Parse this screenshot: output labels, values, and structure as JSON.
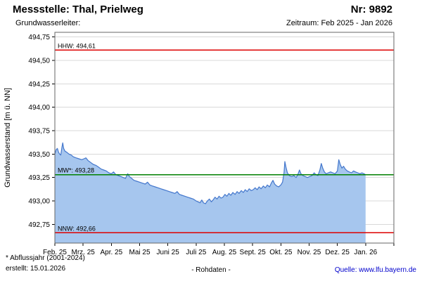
{
  "header": {
    "title": "Messstelle: Thal, Prielweg",
    "number": "Nr: 9892",
    "aquifer_label": "Grundwasserleiter:",
    "period": "Zeitraum: Feb 2025 - Jan 2026"
  },
  "footer": {
    "footnote": "* Abflussjahr (2001-2024)",
    "created": "erstellt: 15.01.2026",
    "center": "- Rohdaten -",
    "source_prefix": "Quelle: ",
    "source_link": "www.lfu.bayern.de"
  },
  "chart_data": {
    "type": "area",
    "title": "Messstelle: Thal, Prielweg",
    "ylabel": "Grundwasserstand [m ü. NN]",
    "ylim": [
      492.55,
      494.8
    ],
    "x_months": 12,
    "grid": "horizontal",
    "y_ticks": [
      {
        "value": 494.75,
        "label": "494,75"
      },
      {
        "value": 494.5,
        "label": "494,50"
      },
      {
        "value": 494.25,
        "label": "494,25"
      },
      {
        "value": 494.0,
        "label": "494,00"
      },
      {
        "value": 493.75,
        "label": "493,75"
      },
      {
        "value": 493.5,
        "label": "493,50"
      },
      {
        "value": 493.25,
        "label": "493,25"
      },
      {
        "value": 493.0,
        "label": "493,00"
      },
      {
        "value": 492.75,
        "label": "492,75"
      }
    ],
    "x_ticks": [
      "Feb. 25",
      "Mrz. 25",
      "Apr. 25",
      "Mai 25",
      "Juni 25",
      "Juli 25",
      "Aug. 25",
      "Sept. 25",
      "Okt. 25",
      "Nov. 25",
      "Dez. 25",
      "Jan. 26"
    ],
    "reference_lines": [
      {
        "name": "HHW",
        "label": "HHW: 494,61",
        "value": 494.61,
        "color": "#dd0000"
      },
      {
        "name": "MW",
        "label": "MW*: 493,28",
        "value": 493.28,
        "color": "#008000"
      },
      {
        "name": "NNW",
        "label": "NNW: 492,66",
        "value": 492.66,
        "color": "#dd0000"
      }
    ],
    "colors": {
      "area": "#a6c6ee",
      "line": "#4477cc",
      "grid": "#d8d8d8",
      "frame": "#666666",
      "text": "#000000"
    },
    "series": [
      {
        "name": "Grundwasserstand (Rohdaten)",
        "points": [
          [
            0.0,
            493.5
          ],
          [
            0.05,
            493.55
          ],
          [
            0.09,
            493.56
          ],
          [
            0.13,
            493.52
          ],
          [
            0.17,
            493.5
          ],
          [
            0.21,
            493.49
          ],
          [
            0.25,
            493.57
          ],
          [
            0.28,
            493.62
          ],
          [
            0.31,
            493.56
          ],
          [
            0.36,
            493.53
          ],
          [
            0.42,
            493.52
          ],
          [
            0.5,
            493.5
          ],
          [
            0.58,
            493.49
          ],
          [
            0.66,
            493.47
          ],
          [
            0.75,
            493.46
          ],
          [
            0.85,
            493.45
          ],
          [
            0.95,
            493.44
          ],
          [
            1.03,
            493.45
          ],
          [
            1.1,
            493.46
          ],
          [
            1.18,
            493.43
          ],
          [
            1.27,
            493.41
          ],
          [
            1.36,
            493.39
          ],
          [
            1.45,
            493.38
          ],
          [
            1.55,
            493.36
          ],
          [
            1.64,
            493.34
          ],
          [
            1.73,
            493.33
          ],
          [
            1.82,
            493.32
          ],
          [
            1.91,
            493.3
          ],
          [
            2.0,
            493.29
          ],
          [
            2.08,
            493.31
          ],
          [
            2.16,
            493.28
          ],
          [
            2.25,
            493.27
          ],
          [
            2.34,
            493.26
          ],
          [
            2.42,
            493.25
          ],
          [
            2.5,
            493.24
          ],
          [
            2.58,
            493.29
          ],
          [
            2.64,
            493.26
          ],
          [
            2.72,
            493.24
          ],
          [
            2.8,
            493.22
          ],
          [
            2.9,
            493.21
          ],
          [
            3.0,
            493.2
          ],
          [
            3.1,
            493.19
          ],
          [
            3.2,
            493.18
          ],
          [
            3.28,
            493.2
          ],
          [
            3.36,
            493.17
          ],
          [
            3.45,
            493.16
          ],
          [
            3.55,
            493.15
          ],
          [
            3.65,
            493.14
          ],
          [
            3.75,
            493.13
          ],
          [
            3.85,
            493.12
          ],
          [
            3.95,
            493.11
          ],
          [
            4.05,
            493.1
          ],
          [
            4.15,
            493.09
          ],
          [
            4.25,
            493.08
          ],
          [
            4.33,
            493.1
          ],
          [
            4.41,
            493.07
          ],
          [
            4.5,
            493.06
          ],
          [
            4.6,
            493.05
          ],
          [
            4.7,
            493.04
          ],
          [
            4.8,
            493.03
          ],
          [
            4.9,
            493.02
          ],
          [
            5.0,
            493.0
          ],
          [
            5.07,
            492.99
          ],
          [
            5.14,
            492.98
          ],
          [
            5.2,
            493.01
          ],
          [
            5.26,
            492.98
          ],
          [
            5.33,
            492.97
          ],
          [
            5.4,
            493.0
          ],
          [
            5.47,
            493.02
          ],
          [
            5.54,
            492.99
          ],
          [
            5.6,
            493.01
          ],
          [
            5.67,
            493.04
          ],
          [
            5.74,
            493.02
          ],
          [
            5.81,
            493.05
          ],
          [
            5.88,
            493.03
          ],
          [
            5.95,
            493.04
          ],
          [
            6.02,
            493.07
          ],
          [
            6.09,
            493.05
          ],
          [
            6.16,
            493.08
          ],
          [
            6.23,
            493.06
          ],
          [
            6.3,
            493.09
          ],
          [
            6.38,
            493.07
          ],
          [
            6.45,
            493.1
          ],
          [
            6.52,
            493.08
          ],
          [
            6.6,
            493.11
          ],
          [
            6.67,
            493.09
          ],
          [
            6.74,
            493.12
          ],
          [
            6.81,
            493.1
          ],
          [
            6.88,
            493.13
          ],
          [
            6.95,
            493.11
          ],
          [
            7.02,
            493.12
          ],
          [
            7.09,
            493.14
          ],
          [
            7.16,
            493.12
          ],
          [
            7.23,
            493.15
          ],
          [
            7.3,
            493.13
          ],
          [
            7.38,
            493.16
          ],
          [
            7.45,
            493.14
          ],
          [
            7.52,
            493.17
          ],
          [
            7.6,
            493.15
          ],
          [
            7.66,
            493.19
          ],
          [
            7.72,
            493.22
          ],
          [
            7.78,
            493.18
          ],
          [
            7.85,
            493.16
          ],
          [
            7.92,
            493.15
          ],
          [
            8.0,
            493.17
          ],
          [
            8.06,
            493.2
          ],
          [
            8.11,
            493.3
          ],
          [
            8.14,
            493.42
          ],
          [
            8.18,
            493.36
          ],
          [
            8.23,
            493.3
          ],
          [
            8.3,
            493.27
          ],
          [
            8.38,
            493.26
          ],
          [
            8.46,
            493.27
          ],
          [
            8.54,
            493.25
          ],
          [
            8.6,
            493.28
          ],
          [
            8.66,
            493.33
          ],
          [
            8.71,
            493.29
          ],
          [
            8.78,
            493.27
          ],
          [
            8.86,
            493.26
          ],
          [
            8.94,
            493.25
          ],
          [
            9.02,
            493.26
          ],
          [
            9.1,
            493.27
          ],
          [
            9.18,
            493.3
          ],
          [
            9.24,
            493.28
          ],
          [
            9.31,
            493.27
          ],
          [
            9.38,
            493.33
          ],
          [
            9.43,
            493.4
          ],
          [
            9.48,
            493.35
          ],
          [
            9.54,
            493.31
          ],
          [
            9.6,
            493.29
          ],
          [
            9.68,
            493.3
          ],
          [
            9.76,
            493.31
          ],
          [
            9.84,
            493.3
          ],
          [
            9.92,
            493.29
          ],
          [
            10.0,
            493.32
          ],
          [
            10.05,
            493.44
          ],
          [
            10.1,
            493.39
          ],
          [
            10.16,
            493.35
          ],
          [
            10.22,
            493.37
          ],
          [
            10.28,
            493.34
          ],
          [
            10.35,
            493.32
          ],
          [
            10.42,
            493.31
          ],
          [
            10.5,
            493.3
          ],
          [
            10.57,
            493.32
          ],
          [
            10.64,
            493.31
          ],
          [
            10.72,
            493.3
          ],
          [
            10.8,
            493.29
          ],
          [
            10.87,
            493.3
          ],
          [
            10.94,
            493.29
          ],
          [
            11.0,
            493.28
          ]
        ]
      }
    ]
  }
}
